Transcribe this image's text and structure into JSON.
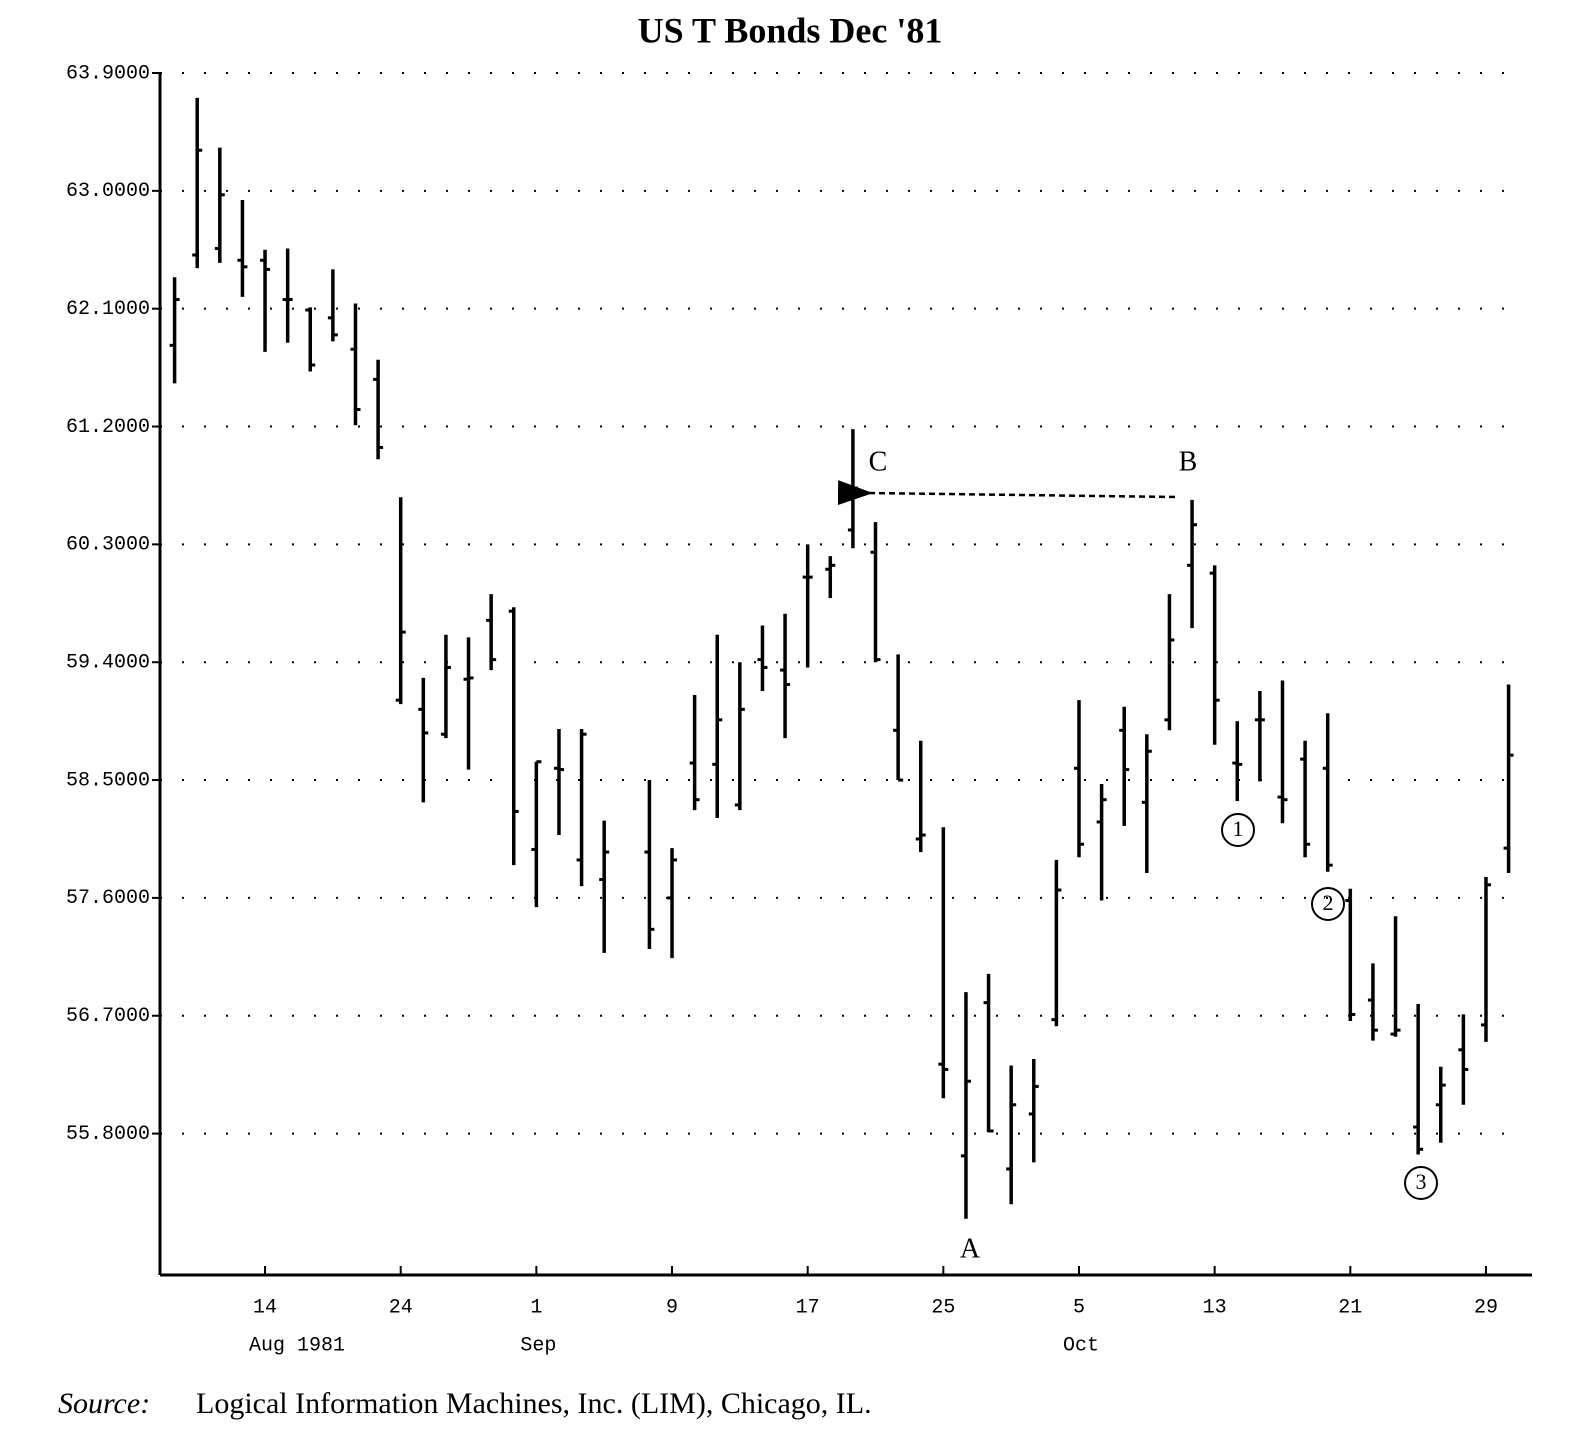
{
  "chart_data": {
    "type": "ohlc",
    "title": "US T Bonds Dec '81",
    "categories": [
      null,
      null,
      null,
      null,
      "14",
      null,
      null,
      null,
      null,
      null,
      "24",
      null,
      null,
      null,
      null,
      null,
      "1",
      null,
      null,
      null,
      null,
      null,
      "9",
      null,
      null,
      null,
      null,
      null,
      "17",
      null,
      null,
      null,
      null,
      null,
      "25",
      null,
      null,
      null,
      null,
      null,
      "5",
      null,
      null,
      null,
      null,
      null,
      "13",
      null,
      null,
      null,
      null,
      null,
      "21",
      null,
      null,
      null,
      null,
      null,
      "29",
      null
    ],
    "month_labels": [
      "Aug 1981",
      "Sep",
      "Oct"
    ],
    "open": [
      61.82,
      62.51,
      62.56,
      62.47,
      62.47,
      62.17,
      62.09,
      62.03,
      61.79,
      61.56,
      59.11,
      59.04,
      58.85,
      59.27,
      59.72,
      59.79,
      57.97,
      58.59,
      57.89,
      57.74,
      null,
      57.95,
      57.6,
      58.63,
      58.62,
      58.31,
      59.42,
      59.34,
      60.05,
      60.11,
      60.41,
      60.24,
      58.88,
      58.05,
      56.33,
      55.63,
      56.8,
      55.53,
      55.95,
      56.67,
      58.59,
      58.18,
      58.88,
      58.33,
      58.96,
      60.14,
      60.08,
      58.63,
      58.96,
      58.37,
      58.66,
      58.59,
      57.58,
      56.82,
      56.56,
      55.85,
      56.02,
      56.44,
      56.63,
      57.98
    ],
    "high": [
      62.34,
      63.71,
      63.33,
      62.93,
      62.55,
      62.56,
      62.11,
      62.4,
      62.14,
      61.71,
      60.66,
      59.28,
      59.61,
      59.59,
      59.92,
      59.82,
      58.64,
      58.89,
      58.89,
      58.19,
      null,
      58.5,
      57.98,
      59.15,
      59.61,
      59.4,
      59.68,
      59.77,
      60.3,
      60.21,
      61.18,
      60.47,
      59.46,
      58.8,
      58.14,
      56.88,
      57.02,
      56.32,
      56.37,
      57.89,
      59.11,
      58.47,
      59.06,
      58.85,
      59.92,
      60.64,
      60.14,
      58.95,
      59.18,
      59.26,
      58.8,
      59.01,
      57.67,
      57.1,
      57.46,
      56.79,
      56.31,
      56.71,
      57.76,
      59.23
    ],
    "low": [
      61.53,
      62.41,
      62.45,
      62.19,
      61.77,
      61.84,
      61.62,
      61.85,
      61.21,
      60.95,
      59.08,
      58.33,
      58.82,
      58.58,
      59.34,
      57.85,
      57.53,
      58.08,
      57.69,
      57.18,
      null,
      57.21,
      57.14,
      58.27,
      58.21,
      58.27,
      59.18,
      58.82,
      59.36,
      59.89,
      60.27,
      59.4,
      58.5,
      57.95,
      56.07,
      55.15,
      55.81,
      55.26,
      55.58,
      56.62,
      57.91,
      57.58,
      58.15,
      57.79,
      58.88,
      59.66,
      58.77,
      58.34,
      58.49,
      58.17,
      57.91,
      57.8,
      56.66,
      56.51,
      56.54,
      55.64,
      55.73,
      56.02,
      56.5,
      57.79
    ],
    "close": [
      62.17,
      63.31,
      62.97,
      62.42,
      62.4,
      62.17,
      61.67,
      61.9,
      61.33,
      61.04,
      59.63,
      58.86,
      59.36,
      59.28,
      59.42,
      58.26,
      58.64,
      58.58,
      58.85,
      57.95,
      null,
      57.36,
      57.89,
      58.35,
      58.96,
      59.04,
      59.36,
      59.23,
      60.05,
      60.14,
      60.73,
      59.42,
      58.5,
      58.08,
      56.29,
      56.2,
      55.82,
      56.02,
      56.16,
      57.66,
      58.01,
      58.35,
      58.58,
      58.72,
      59.57,
      60.45,
      59.11,
      58.62,
      58.96,
      58.35,
      58.01,
      57.85,
      56.71,
      56.59,
      56.59,
      55.68,
      56.17,
      56.29,
      57.7,
      58.69
    ],
    "ylim": [
      54.72,
      63.9
    ],
    "yticks": [
      {
        "value": 63.9,
        "label": "63.9000"
      },
      {
        "value": 63.0,
        "label": "63.0000"
      },
      {
        "value": 62.1,
        "label": "62.1000"
      },
      {
        "value": 61.2,
        "label": "61.2000"
      },
      {
        "value": 60.3,
        "label": "60.3000"
      },
      {
        "value": 59.4,
        "label": "59.4000"
      },
      {
        "value": 58.5,
        "label": "58.5000"
      },
      {
        "value": 57.6,
        "label": "57.6000"
      },
      {
        "value": 56.7,
        "label": "56.7000"
      },
      {
        "value": 55.8,
        "label": "55.8000"
      }
    ],
    "grid": true,
    "color": "#000000",
    "annotations": [
      "C",
      "B",
      "A",
      "1",
      "2",
      "3"
    ],
    "source_label": "Source:",
    "source": "Logical Information Machines, Inc. (LIM), Chicago, IL."
  }
}
